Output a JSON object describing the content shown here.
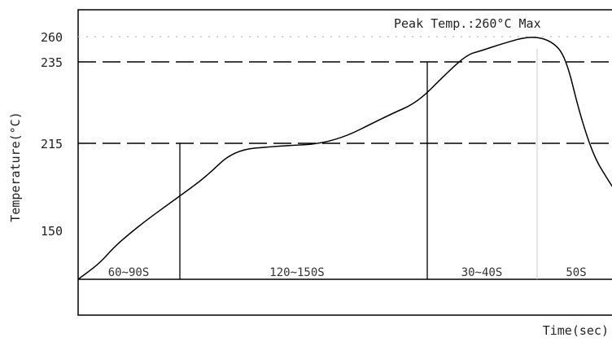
{
  "chart_data": {
    "type": "line",
    "title": "",
    "xlabel": "Time(sec)",
    "ylabel": "Temperature(°C)",
    "y_ticks": [
      "260",
      "235",
      "215",
      "150"
    ],
    "annotation": "Peak Temp.:260°C Max",
    "reference_lines": [
      {
        "label": "260",
        "style": "dotted"
      },
      {
        "label": "235",
        "style": "dashed"
      },
      {
        "label": "215",
        "style": "dashed"
      }
    ],
    "segments": [
      "60~90S",
      "120~150S",
      "30~40S",
      "50S"
    ],
    "profile": {
      "x_sec": [
        0,
        15,
        25,
        35,
        50,
        70,
        90,
        110,
        140,
        180,
        220,
        240,
        260,
        275,
        285,
        300,
        320,
        335,
        345,
        355,
        365,
        375,
        380
      ],
      "y_c": [
        120,
        130,
        140,
        148,
        160,
        175,
        190,
        210,
        213,
        215,
        222,
        225,
        232,
        242,
        246,
        253,
        261,
        256,
        240,
        222,
        205,
        188,
        180
      ]
    }
  }
}
